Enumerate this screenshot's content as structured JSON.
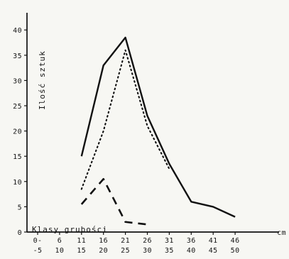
{
  "chart_data": {
    "type": "line",
    "title": "",
    "xlabel": "Klasy grubości",
    "xunit": "cm",
    "ylabel": "Ilość sztuk",
    "ylim": [
      0,
      40
    ],
    "yticks": [
      0,
      5,
      10,
      15,
      20,
      25,
      30,
      35,
      40
    ],
    "categories": [
      {
        "top": "0-",
        "bottom": "-5"
      },
      {
        "top": "6",
        "bottom": "10"
      },
      {
        "top": "11",
        "bottom": "15"
      },
      {
        "top": "16",
        "bottom": "20"
      },
      {
        "top": "21",
        "bottom": "25"
      },
      {
        "top": "26",
        "bottom": "30"
      },
      {
        "top": "31",
        "bottom": "35"
      },
      {
        "top": "36",
        "bottom": "40"
      },
      {
        "top": "41",
        "bottom": "45"
      },
      {
        "top": "46",
        "bottom": "50"
      }
    ],
    "series": [
      {
        "style": "solid",
        "color": "#111111",
        "values": [
          null,
          null,
          15,
          33,
          38.5,
          23,
          13.5,
          6,
          5,
          3
        ]
      },
      {
        "style": "dotted",
        "color": "#111111",
        "values": [
          null,
          null,
          8.5,
          20,
          36,
          21,
          12.5,
          null,
          null,
          null
        ]
      },
      {
        "style": "dashed",
        "color": "#111111",
        "values": [
          null,
          null,
          5.5,
          10.5,
          2,
          1.5,
          null,
          null,
          null,
          null
        ]
      }
    ],
    "grid": false,
    "legend": "none"
  }
}
